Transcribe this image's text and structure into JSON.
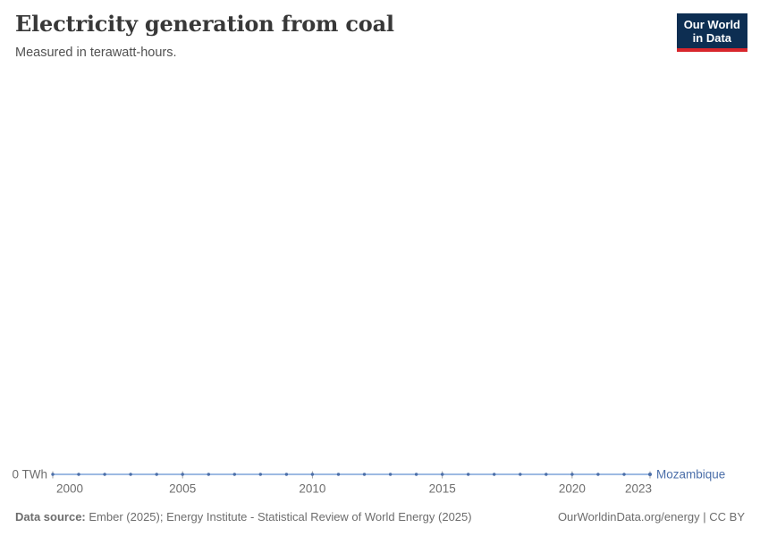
{
  "header": {
    "title": "Electricity generation from coal",
    "subtitle": "Measured in terawatt-hours."
  },
  "logo": {
    "line1": "Our World",
    "line2": "in Data"
  },
  "chart_data": {
    "type": "line",
    "title": "Electricity generation from coal",
    "subtitle": "Measured in terawatt-hours.",
    "unit": "TWh",
    "x": [
      2000,
      2001,
      2002,
      2003,
      2004,
      2005,
      2006,
      2007,
      2008,
      2009,
      2010,
      2011,
      2012,
      2013,
      2014,
      2015,
      2016,
      2017,
      2018,
      2019,
      2020,
      2021,
      2022,
      2023
    ],
    "series": [
      {
        "name": "Mozambique",
        "values": [
          0,
          0,
          0,
          0,
          0,
          0,
          0,
          0,
          0,
          0,
          0,
          0,
          0,
          0,
          0,
          0,
          0,
          0,
          0,
          0,
          0,
          0,
          0,
          0
        ],
        "color": "#4c6fa9",
        "line_color": "#9dbae2"
      }
    ],
    "x_ticks": [
      2000,
      2005,
      2010,
      2015,
      2020,
      2023
    ],
    "y_tick_label": "0 TWh",
    "ylim": [
      0,
      0
    ],
    "grid": false,
    "legend": "line-end-label"
  },
  "footer": {
    "source_label": "Data source:",
    "source_text": "Ember (2025); Energy Institute - Statistical Review of World Energy (2025)",
    "right_text": "OurWorldinData.org/energy | CC BY"
  },
  "colors": {
    "series": "#4c6fa9",
    "series_line": "#9dbae2",
    "axis_text": "#6e6e6e",
    "tick": "#a6a6a6",
    "title_text": "#383838",
    "subtitle_text": "#515151",
    "footer_text": "#6d6d6d",
    "logo_bg": "#0d2e52",
    "logo_accent": "#d8262c"
  }
}
